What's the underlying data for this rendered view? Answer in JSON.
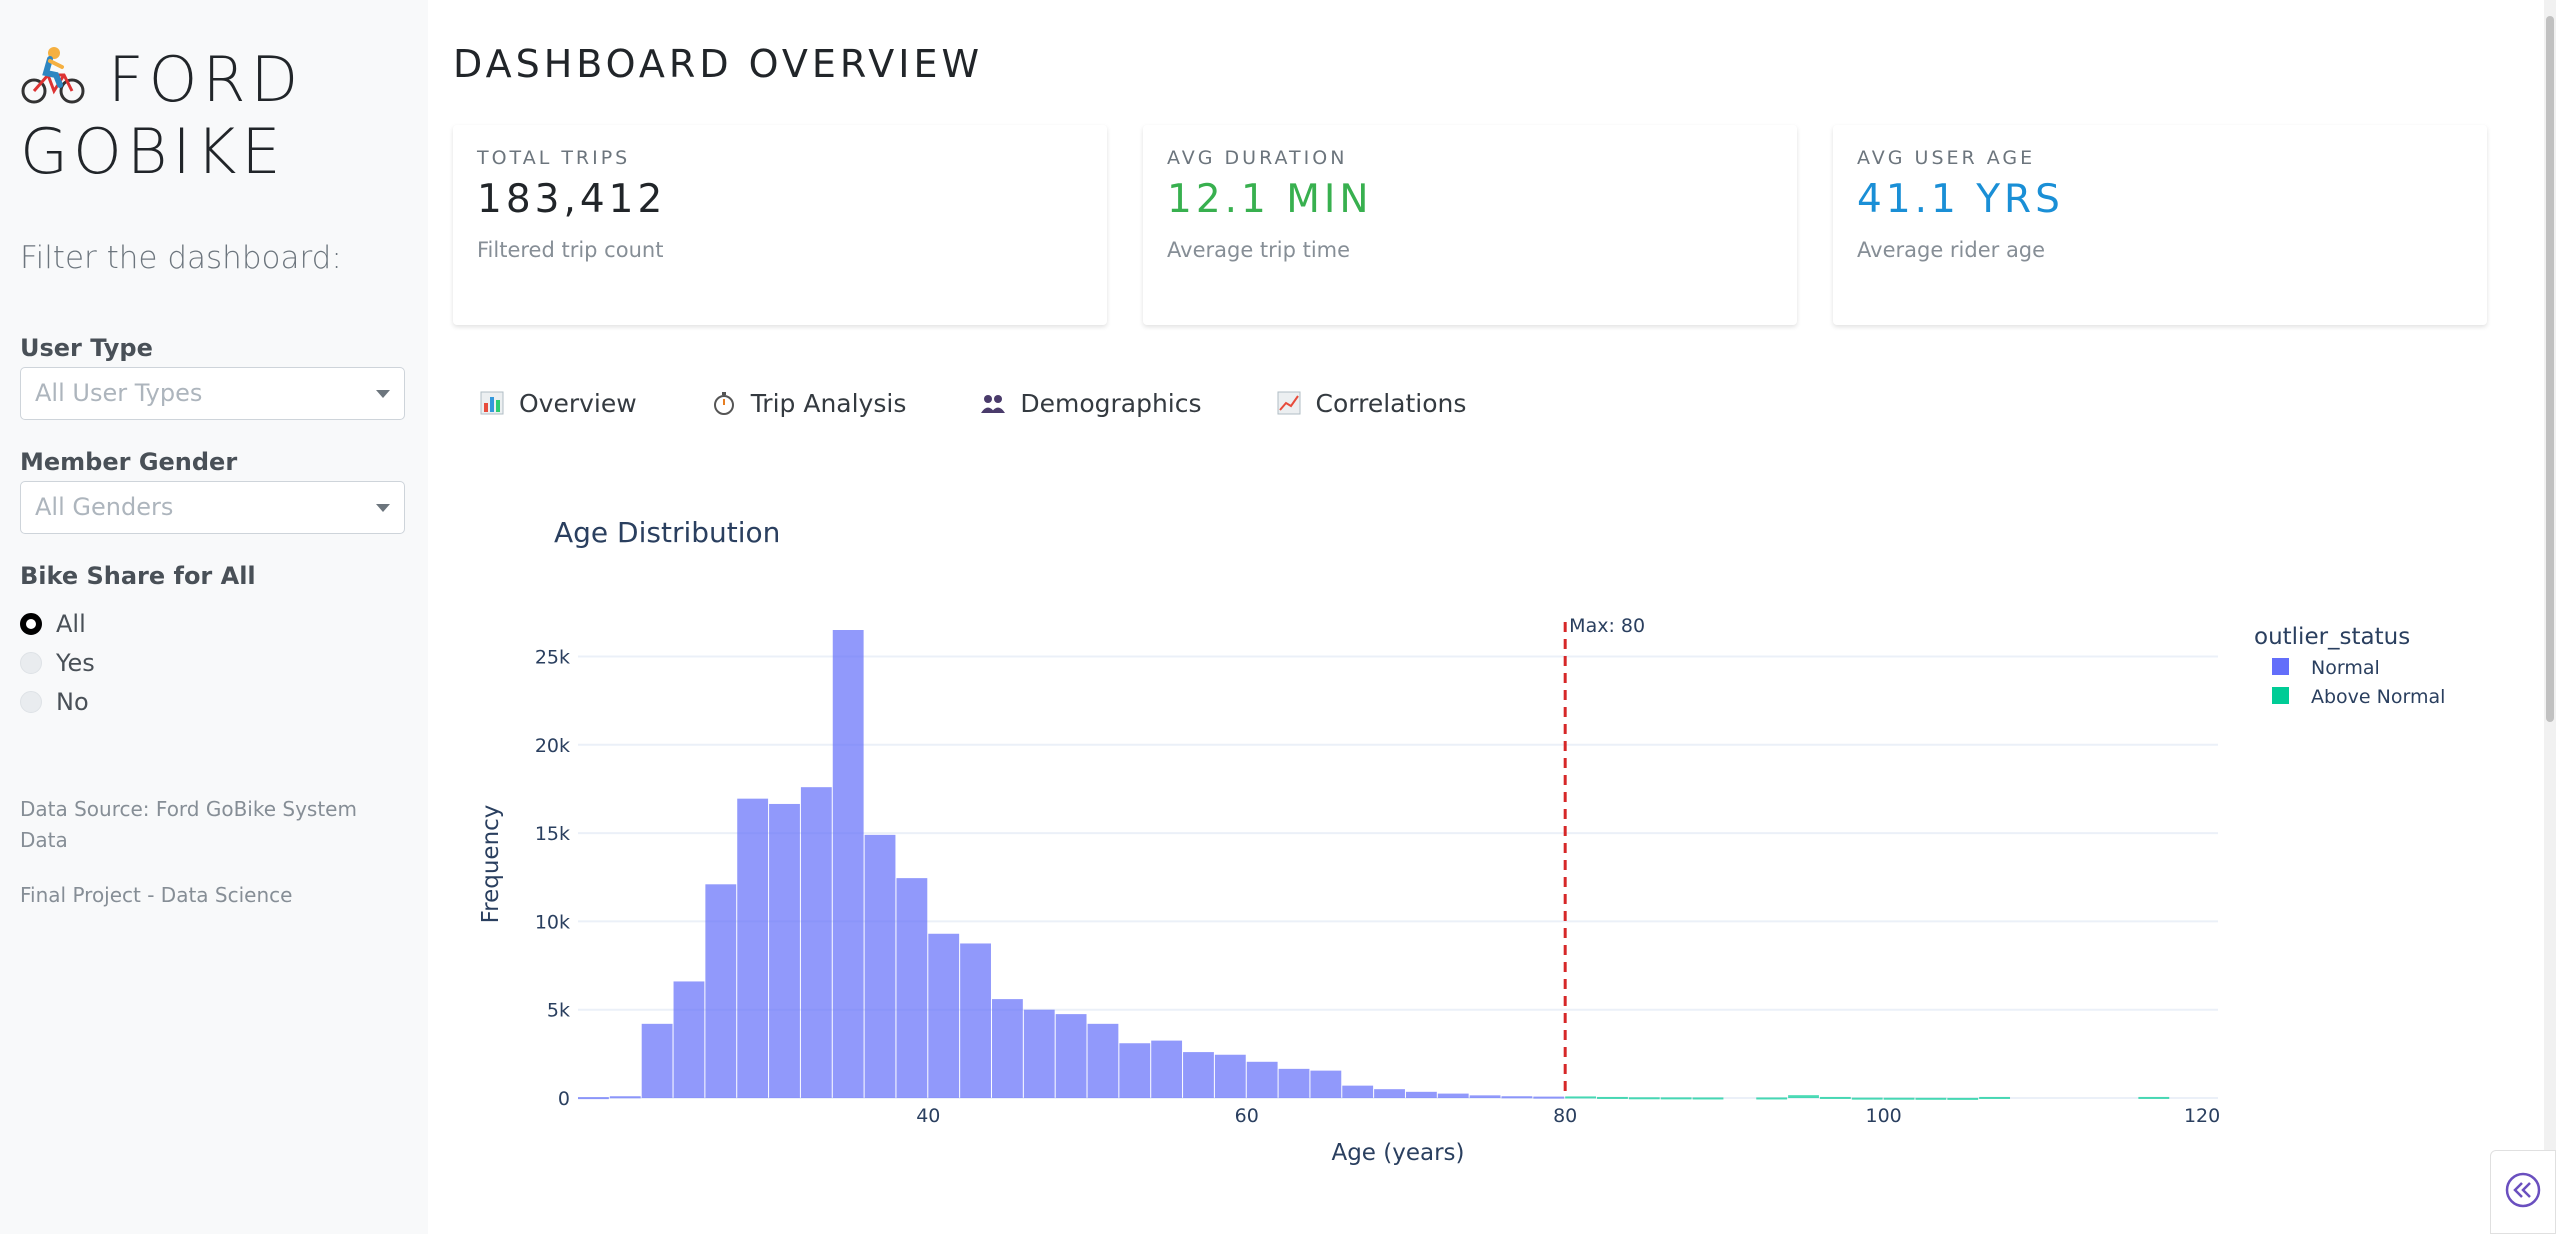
{
  "brand": {
    "title": "FORD GOBIKE",
    "icon": "cyclist-icon"
  },
  "sidebar": {
    "filter_title": "Filter the dashboard:",
    "user_type": {
      "label": "User Type",
      "placeholder": "All User Types"
    },
    "member_gender": {
      "label": "Member Gender",
      "placeholder": "All Genders"
    },
    "bike_share": {
      "label": "Bike Share for All",
      "options": [
        "All",
        "Yes",
        "No"
      ],
      "selected": "All"
    },
    "data_source": "Data Source: Ford GoBike System Data",
    "project_note": "Final Project - Data Science"
  },
  "header": {
    "title": "DASHBOARD OVERVIEW"
  },
  "kpis": [
    {
      "label": "TOTAL TRIPS",
      "value": "183,412",
      "sub": "Filtered trip count",
      "color": "#212529"
    },
    {
      "label": "AVG DURATION",
      "value": "12.1 MIN",
      "sub": "Average trip time",
      "color": "#38b04f"
    },
    {
      "label": "AVG USER AGE",
      "value": "41.1 YRS",
      "sub": "Average rider age",
      "color": "#1a8fd6"
    }
  ],
  "tabs": [
    {
      "label": "Overview",
      "icon": "bar-chart-icon"
    },
    {
      "label": "Trip Analysis",
      "icon": "stopwatch-icon"
    },
    {
      "label": "Demographics",
      "icon": "people-icon"
    },
    {
      "label": "Correlations",
      "icon": "line-chart-icon"
    }
  ],
  "chart_data": {
    "type": "bar",
    "title": "Age Distribution",
    "xlabel": "Age (years)",
    "ylabel": "Frequency",
    "xlim": [
      18,
      121
    ],
    "ylim": [
      0,
      26500
    ],
    "x_ticks": [
      40,
      60,
      80,
      100,
      120
    ],
    "y_ticks": [
      0,
      5000,
      10000,
      15000,
      20000,
      25000
    ],
    "y_tick_labels": [
      "0",
      "5k",
      "10k",
      "15k",
      "20k",
      "25k"
    ],
    "bin_width": 2,
    "legend_title": "outlier_status",
    "legend_position": "top-right",
    "annotation": {
      "text": "Max: 80",
      "x": 80
    },
    "colors": {
      "Normal": "#636efa",
      "Above Normal": "#00cc96",
      "max_line": "#d62728"
    },
    "series": [
      {
        "name": "Normal",
        "bin_starts": [
          18,
          20,
          22,
          24,
          26,
          28,
          30,
          32,
          34,
          36,
          38,
          40,
          42,
          44,
          46,
          48,
          50,
          52,
          54,
          56,
          58,
          60,
          62,
          64,
          66,
          68,
          70,
          72,
          74,
          76,
          78
        ],
        "values": [
          50,
          100,
          4200,
          6600,
          12100,
          16950,
          16650,
          17600,
          26500,
          14900,
          12450,
          9300,
          8750,
          5600,
          5000,
          4750,
          4200,
          3100,
          3250,
          2600,
          2450,
          2050,
          1650,
          1550,
          700,
          500,
          350,
          250,
          150,
          100,
          80
        ]
      },
      {
        "name": "Above Normal",
        "bin_starts": [
          80,
          82,
          84,
          86,
          88,
          90,
          92,
          94,
          96,
          98,
          100,
          102,
          104,
          106,
          108,
          110,
          112,
          114,
          116,
          118
        ],
        "values": [
          90,
          60,
          40,
          35,
          30,
          0,
          30,
          160,
          60,
          20,
          15,
          10,
          5,
          60,
          0,
          0,
          0,
          0,
          60,
          0
        ]
      }
    ]
  }
}
